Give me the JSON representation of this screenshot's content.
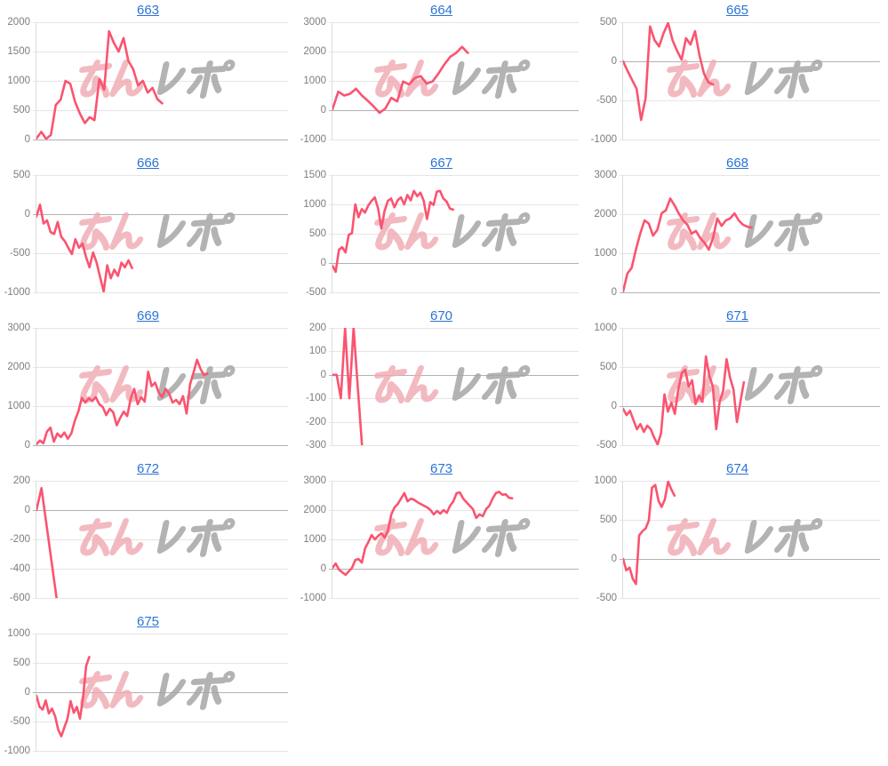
{
  "page": {
    "background": "#ffffff"
  },
  "accent": {
    "line_color": "#fa5470",
    "link_color": "#2b74d8",
    "grid_color": "#e5e5e5",
    "zero_line_color": "#b2b2b2",
    "axis_line_color": "#dcdcdc",
    "tick_label_color": "#7d7d7d"
  },
  "watermark": {
    "text": "みんレポ",
    "part1": "みん",
    "part2": "レポ",
    "pink": "#efa9b1",
    "gray": "#a6a6a6"
  },
  "chart_data": [
    {
      "type": "line",
      "title": "663",
      "link": true,
      "y_ticks": [
        2000,
        1500,
        1000,
        500,
        0
      ],
      "ylim": [
        0,
        2000
      ],
      "span": 0.5,
      "grid": true,
      "legend": "none",
      "xlabel": "",
      "ylabel": "",
      "values": [
        20,
        130,
        10,
        80,
        590,
        680,
        1000,
        950,
        640,
        440,
        280,
        380,
        330,
        1030,
        850,
        1845,
        1650,
        1500,
        1730,
        1340,
        1200,
        925,
        1000,
        800,
        880,
        690,
        615
      ]
    },
    {
      "type": "line",
      "title": "664",
      "link": true,
      "y_ticks": [
        3000,
        2000,
        1000,
        0,
        -1000
      ],
      "ylim": [
        -1000,
        3000
      ],
      "span": 0.55,
      "grid": true,
      "legend": "none",
      "xlabel": "",
      "ylabel": "",
      "values": [
        30,
        630,
        500,
        560,
        730,
        500,
        320,
        130,
        -90,
        60,
        420,
        300,
        980,
        880,
        1100,
        1160,
        910,
        980,
        1250,
        1560,
        1820,
        1950,
        2160,
        1950
      ]
    },
    {
      "type": "line",
      "title": "665",
      "link": true,
      "y_ticks": [
        500,
        0,
        -500,
        -1000
      ],
      "ylim": [
        -1000,
        500
      ],
      "span": 0.35,
      "grid": true,
      "legend": "none",
      "xlabel": "",
      "ylabel": "",
      "values": [
        0,
        -125,
        -240,
        -350,
        -750,
        -470,
        445,
        270,
        190,
        360,
        490,
        270,
        135,
        20,
        295,
        215,
        385,
        70,
        -160,
        -270,
        -295
      ]
    },
    {
      "type": "line",
      "title": "666",
      "link": true,
      "y_ticks": [
        500,
        0,
        -500,
        -1000
      ],
      "ylim": [
        -1000,
        500
      ],
      "span": 0.38,
      "grid": true,
      "legend": "none",
      "xlabel": "",
      "ylabel": "",
      "values": [
        -30,
        120,
        -120,
        -80,
        -230,
        -255,
        -100,
        -290,
        -345,
        -430,
        -510,
        -320,
        -430,
        -375,
        -545,
        -680,
        -490,
        -620,
        -810,
        -990,
        -655,
        -820,
        -710,
        -790,
        -620,
        -680,
        -590,
        -690
      ]
    },
    {
      "type": "line",
      "title": "667",
      "link": true,
      "y_ticks": [
        1500,
        1000,
        500,
        0,
        -500
      ],
      "ylim": [
        -500,
        1500
      ],
      "span": 0.49,
      "grid": true,
      "legend": "none",
      "xlabel": "",
      "ylabel": "",
      "values": [
        -45,
        -150,
        230,
        270,
        180,
        480,
        510,
        1000,
        780,
        920,
        860,
        980,
        1060,
        1120,
        930,
        590,
        890,
        1060,
        1100,
        950,
        1070,
        1120,
        1000,
        1160,
        1070,
        1230,
        1140,
        1200,
        1060,
        750,
        1040,
        990,
        1215,
        1230,
        1100,
        1050,
        930,
        910
      ]
    },
    {
      "type": "line",
      "title": "668",
      "link": true,
      "y_ticks": [
        3000,
        2000,
        1000,
        0
      ],
      "ylim": [
        0,
        3000
      ],
      "span": 0.5,
      "grid": true,
      "legend": "none",
      "xlabel": "",
      "ylabel": "",
      "values": [
        20,
        480,
        630,
        1100,
        1500,
        1840,
        1760,
        1450,
        1600,
        2020,
        2100,
        2400,
        2230,
        2020,
        1840,
        1730,
        1500,
        1570,
        1390,
        1270,
        1090,
        1390,
        1890,
        1700,
        1840,
        1890,
        2020,
        1840,
        1730,
        1680,
        1660
      ]
    },
    {
      "type": "line",
      "title": "669",
      "link": true,
      "y_ticks": [
        3000,
        2000,
        1000,
        0
      ],
      "ylim": [
        0,
        3000
      ],
      "span": 0.68,
      "grid": true,
      "legend": "none",
      "xlabel": "",
      "ylabel": "",
      "values": [
        25,
        120,
        50,
        350,
        450,
        90,
        300,
        210,
        325,
        165,
        300,
        630,
        860,
        1210,
        1090,
        1200,
        1130,
        1230,
        1050,
        975,
        770,
        930,
        840,
        510,
        700,
        860,
        745,
        1190,
        1440,
        1050,
        1230,
        1115,
        1880,
        1510,
        1600,
        1350,
        1230,
        1440,
        1325,
        1090,
        1160,
        1050,
        1255,
        810,
        1555,
        1860,
        2185,
        1950,
        1790,
        1835
      ]
    },
    {
      "type": "line",
      "title": "670",
      "link": true,
      "y_ticks": [
        200,
        100,
        0,
        -100,
        -200,
        -300
      ],
      "ylim": [
        -300,
        200
      ],
      "span": 0.12,
      "grid": true,
      "legend": "none",
      "xlabel": "",
      "ylabel": "",
      "values": [
        0,
        0,
        -100,
        200,
        -100,
        200,
        -50,
        -300
      ]
    },
    {
      "type": "line",
      "title": "671",
      "link": true,
      "y_ticks": [
        1000,
        500,
        0,
        -500
      ],
      "ylim": [
        -500,
        1000
      ],
      "span": 0.47,
      "grid": true,
      "legend": "none",
      "xlabel": "",
      "ylabel": "",
      "values": [
        -35,
        -115,
        -60,
        -180,
        -295,
        -230,
        -330,
        -250,
        -295,
        -400,
        -490,
        -350,
        150,
        -70,
        45,
        -100,
        215,
        420,
        465,
        250,
        330,
        25,
        135,
        55,
        635,
        385,
        250,
        -295,
        55,
        195,
        600,
        365,
        215,
        -205,
        55,
        305
      ]
    },
    {
      "type": "line",
      "title": "672",
      "link": true,
      "y_ticks": [
        200,
        0,
        -200,
        -400,
        -600
      ],
      "ylim": [
        -600,
        200
      ],
      "span": 0.08,
      "grid": true,
      "legend": "none",
      "xlabel": "",
      "ylabel": "",
      "values": [
        0,
        150,
        -100,
        -350,
        -600
      ]
    },
    {
      "type": "line",
      "title": "673",
      "link": true,
      "y_ticks": [
        3000,
        2000,
        1000,
        0,
        -1000
      ],
      "ylim": [
        -1000,
        3000
      ],
      "span": 0.73,
      "grid": true,
      "legend": "none",
      "xlabel": "",
      "ylabel": "",
      "values": [
        30,
        180,
        -30,
        -120,
        -210,
        -90,
        30,
        300,
        330,
        210,
        700,
        910,
        1150,
        1000,
        1120,
        1210,
        1060,
        1300,
        1850,
        2090,
        2210,
        2390,
        2580,
        2300,
        2390,
        2350,
        2270,
        2210,
        2150,
        2090,
        2000,
        1850,
        1970,
        1880,
        2000,
        1910,
        2150,
        2300,
        2580,
        2600,
        2390,
        2270,
        2150,
        2030,
        1730,
        1850,
        1790,
        2030,
        2150,
        2390,
        2580,
        2620,
        2520,
        2540,
        2420,
        2400
      ]
    },
    {
      "type": "line",
      "title": "674",
      "link": true,
      "y_ticks": [
        1000,
        500,
        0,
        -500
      ],
      "ylim": [
        -500,
        1000
      ],
      "span": 0.2,
      "grid": true,
      "legend": "none",
      "xlabel": "",
      "ylabel": "",
      "values": [
        0,
        -145,
        -110,
        -255,
        -320,
        300,
        355,
        390,
        490,
        910,
        945,
        745,
        665,
        760,
        990,
        890,
        810
      ]
    },
    {
      "type": "line",
      "title": "675",
      "link": true,
      "y_ticks": [
        1000,
        500,
        0,
        -500,
        -1000
      ],
      "ylim": [
        -1000,
        1000
      ],
      "span": 0.21,
      "grid": true,
      "legend": "none",
      "xlabel": "",
      "ylabel": "",
      "values": [
        -60,
        -250,
        -295,
        -140,
        -360,
        -280,
        -405,
        -640,
        -750,
        -600,
        -450,
        -150,
        -350,
        -250,
        -450,
        -100,
        450,
        600
      ]
    }
  ]
}
